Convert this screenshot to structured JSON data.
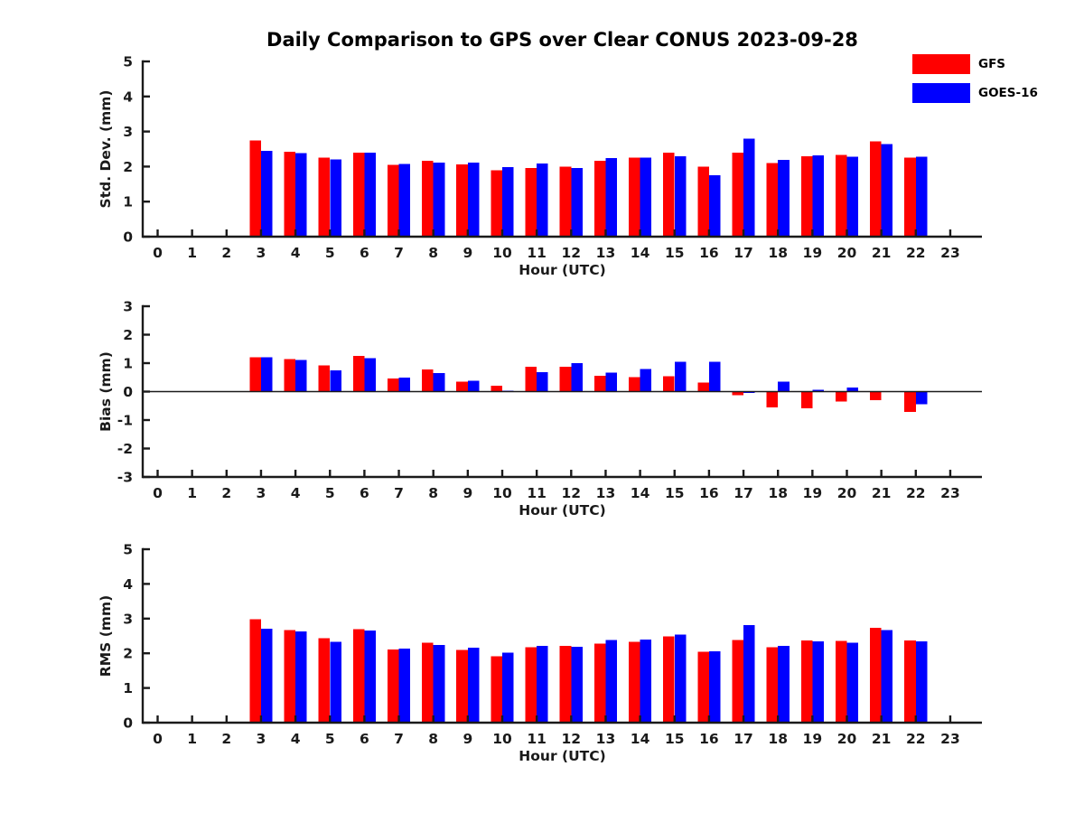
{
  "title": "Daily Comparison to GPS over Clear CONUS 2023-09-28",
  "legend": {
    "position": "top-right",
    "items": [
      {
        "label": "GFS",
        "color": "#ff0000"
      },
      {
        "label": "GOES-16",
        "color": "#0000ff"
      }
    ]
  },
  "chart_data": [
    {
      "type": "bar",
      "ylabel": "Std. Dev. (mm)",
      "xlabel": "Hour (UTC)",
      "ylim": [
        0,
        5
      ],
      "yticks": [
        0,
        1,
        2,
        3,
        4,
        5
      ],
      "categories": [
        0,
        1,
        2,
        3,
        4,
        5,
        6,
        7,
        8,
        9,
        10,
        11,
        12,
        13,
        14,
        15,
        16,
        17,
        18,
        19,
        20,
        21,
        22,
        23
      ],
      "grid": false,
      "zero_line": false,
      "series": [
        {
          "name": "GFS",
          "color": "#ff0000",
          "values": [
            null,
            null,
            null,
            2.75,
            2.42,
            2.25,
            2.4,
            2.05,
            2.17,
            2.06,
            1.9,
            1.96,
            2.0,
            2.17,
            2.25,
            2.4,
            2.0,
            2.4,
            2.1,
            2.29,
            2.33,
            2.72,
            2.25,
            null
          ]
        },
        {
          "name": "GOES-16",
          "color": "#0000ff",
          "values": [
            null,
            null,
            null,
            2.45,
            2.39,
            2.21,
            2.4,
            2.07,
            2.11,
            2.11,
            1.98,
            2.09,
            1.96,
            2.24,
            2.25,
            2.3,
            1.75,
            2.79,
            2.19,
            2.32,
            2.28,
            2.64,
            2.28,
            null
          ]
        }
      ]
    },
    {
      "type": "bar",
      "ylabel": "Bias (mm)",
      "xlabel": "Hour (UTC)",
      "ylim": [
        -3,
        3
      ],
      "yticks": [
        -3,
        -2,
        -1,
        0,
        1,
        2,
        3
      ],
      "categories": [
        0,
        1,
        2,
        3,
        4,
        5,
        6,
        7,
        8,
        9,
        10,
        11,
        12,
        13,
        14,
        15,
        16,
        17,
        18,
        19,
        20,
        21,
        22,
        23
      ],
      "grid": false,
      "zero_line": true,
      "series": [
        {
          "name": "GFS",
          "color": "#ff0000",
          "values": [
            null,
            null,
            null,
            1.21,
            1.14,
            0.92,
            1.26,
            0.46,
            0.77,
            0.35,
            0.21,
            0.87,
            0.87,
            0.55,
            0.51,
            0.54,
            0.31,
            -0.13,
            -0.55,
            -0.58,
            -0.35,
            -0.3,
            -0.72,
            null
          ]
        },
        {
          "name": "GOES-16",
          "color": "#0000ff",
          "values": [
            null,
            null,
            null,
            1.21,
            1.11,
            0.74,
            1.18,
            0.5,
            0.65,
            0.38,
            0.03,
            0.68,
            1.0,
            0.66,
            0.8,
            1.05,
            1.05,
            -0.05,
            0.35,
            0.06,
            0.15,
            0.0,
            -0.45,
            null
          ]
        }
      ]
    },
    {
      "type": "bar",
      "ylabel": "RMS (mm)",
      "xlabel": "Hour (UTC)",
      "ylim": [
        0,
        5
      ],
      "yticks": [
        0,
        1,
        2,
        3,
        4,
        5
      ],
      "categories": [
        0,
        1,
        2,
        3,
        4,
        5,
        6,
        7,
        8,
        9,
        10,
        11,
        12,
        13,
        14,
        15,
        16,
        17,
        18,
        19,
        20,
        21,
        22,
        23
      ],
      "grid": false,
      "zero_line": false,
      "series": [
        {
          "name": "GFS",
          "color": "#ff0000",
          "values": [
            null,
            null,
            null,
            2.98,
            2.67,
            2.43,
            2.69,
            2.11,
            2.31,
            2.1,
            1.92,
            2.18,
            2.21,
            2.28,
            2.33,
            2.49,
            2.05,
            2.38,
            2.17,
            2.37,
            2.36,
            2.74,
            2.37,
            null
          ]
        },
        {
          "name": "GOES-16",
          "color": "#0000ff",
          "values": [
            null,
            null,
            null,
            2.71,
            2.63,
            2.33,
            2.66,
            2.14,
            2.24,
            2.16,
            2.02,
            2.22,
            2.19,
            2.38,
            2.4,
            2.54,
            2.06,
            2.81,
            2.22,
            2.35,
            2.31,
            2.67,
            2.35,
            null
          ]
        }
      ]
    }
  ]
}
